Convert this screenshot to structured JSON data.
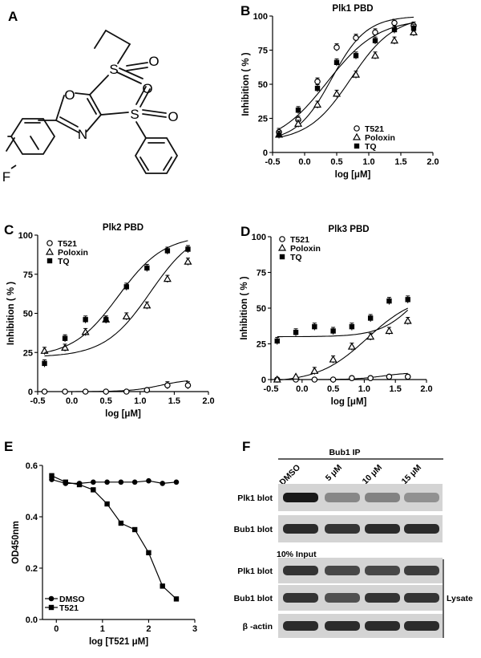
{
  "panels": {
    "A": {
      "letter": "A",
      "atom_O": "O",
      "atom_N": "N",
      "atom_F": "F",
      "atom_S1": "S",
      "atom_S2": "S",
      "atom_O1": "O",
      "atom_O2": "O",
      "atom_O3": "O",
      "atom_O4": "O"
    },
    "F": {
      "letter": "F",
      "ip_label": "Bub1 IP",
      "lanes": [
        "DMSO",
        "5 μM",
        "10 μM",
        "15 μM"
      ],
      "input_label": "10% Input",
      "lysate_label": "Lysate",
      "rows": [
        {
          "label": "Plk1 blot",
          "intensity": [
            0.95,
            0.35,
            0.38,
            0.3
          ]
        },
        {
          "label": "Bub1 blot",
          "intensity": [
            0.85,
            0.8,
            0.85,
            0.85
          ]
        },
        {
          "label": "Plk1 blot",
          "intensity": [
            0.8,
            0.7,
            0.7,
            0.75
          ]
        },
        {
          "label": "Bub1 blot",
          "intensity": [
            0.8,
            0.65,
            0.8,
            0.8
          ]
        },
        {
          "label": "β -actin",
          "intensity": [
            0.85,
            0.85,
            0.85,
            0.85
          ]
        }
      ]
    }
  },
  "chart_data": [
    {
      "id": "B",
      "letter": "B",
      "type": "scatter",
      "title": "Plk1 PBD",
      "xlabel": "log [μM]",
      "ylabel": "Inhibition ( % )",
      "xlim": [
        -0.5,
        2.0
      ],
      "ylim": [
        0,
        100
      ],
      "xticks": [
        "-0.5",
        "0.0",
        "0.5",
        "1.0",
        "1.5",
        "2.0"
      ],
      "yticks": [
        "0",
        "25",
        "50",
        "75",
        "100"
      ],
      "legend_position": "bottom-right",
      "series": [
        {
          "name": "T521",
          "marker": "circle-open",
          "x": [
            -0.4,
            -0.1,
            0.2,
            0.5,
            0.8,
            1.1,
            1.4,
            1.7
          ],
          "y": [
            15,
            24,
            52,
            77,
            84,
            88,
            95,
            93
          ],
          "curve": {
            "bottom": 8,
            "top": 100,
            "ec50_log": 0.42,
            "hill": 1.6
          }
        },
        {
          "name": "Poloxin",
          "marker": "triangle-open",
          "x": [
            -0.4,
            -0.1,
            0.2,
            0.5,
            0.8,
            1.1,
            1.4,
            1.7
          ],
          "y": [
            13,
            21,
            35,
            43,
            57,
            71,
            82,
            88
          ],
          "curve": {
            "bottom": 8,
            "top": 100,
            "ec50_log": 0.72,
            "hill": 1.3
          }
        },
        {
          "name": "TQ",
          "marker": "square-filled",
          "x": [
            -0.4,
            -0.1,
            0.2,
            0.5,
            0.8,
            1.1,
            1.4,
            1.7
          ],
          "y": [
            13,
            31,
            47,
            66,
            71,
            82,
            90,
            91
          ],
          "curve": {
            "bottom": 5,
            "top": 98,
            "ec50_log": 0.35,
            "hill": 1.1
          }
        }
      ]
    },
    {
      "id": "C",
      "letter": "C",
      "type": "scatter",
      "title": "Plk2 PBD",
      "xlabel": "log [μM]",
      "ylabel": "Inhibition ( % )",
      "xlim": [
        -0.5,
        2.0
      ],
      "ylim": [
        0,
        100
      ],
      "xticks": [
        "-0.5",
        "0.0",
        "0.5",
        "1.0",
        "1.5",
        "2.0"
      ],
      "yticks": [
        "0",
        "25",
        "50",
        "75",
        "100"
      ],
      "legend_position": "top-left",
      "series": [
        {
          "name": "T521",
          "marker": "circle-open",
          "x": [
            -0.4,
            -0.1,
            0.2,
            0.5,
            0.8,
            1.1,
            1.4,
            1.7
          ],
          "y": [
            0,
            0,
            0,
            0,
            0,
            1,
            4,
            4
          ],
          "curve": {
            "bottom": 0,
            "top": 8,
            "ec50_log": 1.3,
            "hill": 2.0
          }
        },
        {
          "name": "Poloxin",
          "marker": "triangle-open",
          "x": [
            -0.4,
            -0.1,
            0.2,
            0.5,
            0.8,
            1.1,
            1.4,
            1.7
          ],
          "y": [
            26,
            28,
            38,
            46,
            48,
            55,
            72,
            83
          ],
          "curve": {
            "bottom": 22,
            "top": 105,
            "ec50_log": 1.15,
            "hill": 1.3
          }
        },
        {
          "name": "TQ",
          "marker": "square-filled",
          "x": [
            -0.4,
            -0.1,
            0.2,
            0.5,
            0.8,
            1.1,
            1.4,
            1.7
          ],
          "y": [
            18,
            34,
            46,
            46,
            67,
            79,
            90,
            91
          ],
          "curve": {
            "bottom": 22,
            "top": 100,
            "ec50_log": 0.68,
            "hill": 1.3
          }
        }
      ]
    },
    {
      "id": "D",
      "letter": "D",
      "type": "scatter",
      "title": "Plk3 PBD",
      "xlabel": "log [μM]",
      "ylabel": "Inhibition ( % )",
      "xlim": [
        -0.5,
        2.0
      ],
      "ylim": [
        0,
        100
      ],
      "xticks": [
        "-0.5",
        "0.0",
        "0.5",
        "1.0",
        "1.5",
        "2.0"
      ],
      "yticks": [
        "0",
        "25",
        "50",
        "75",
        "100"
      ],
      "legend_position": "top-left",
      "series": [
        {
          "name": "T521",
          "marker": "circle-open",
          "x": [
            -0.4,
            -0.1,
            0.2,
            0.5,
            0.8,
            1.1,
            1.4,
            1.7
          ],
          "y": [
            0,
            0,
            0,
            0,
            1,
            1,
            2,
            2
          ],
          "curve": {
            "bottom": 0,
            "top": 5,
            "ec50_log": 1.3,
            "hill": 2.0
          }
        },
        {
          "name": "Poloxin",
          "marker": "triangle-open",
          "x": [
            -0.4,
            -0.1,
            0.2,
            0.5,
            0.8,
            1.1,
            1.4,
            1.7
          ],
          "y": [
            0,
            2,
            6,
            14,
            23,
            30,
            34,
            41
          ],
          "curve": {
            "bottom": -2,
            "top": 60,
            "ec50_log": 1.05,
            "hill": 1.1
          }
        },
        {
          "name": "TQ",
          "marker": "square-filled",
          "x": [
            -0.4,
            -0.1,
            0.2,
            0.5,
            0.8,
            1.1,
            1.4,
            1.7
          ],
          "y": [
            27,
            33,
            37,
            34,
            37,
            43,
            55,
            56
          ],
          "curve": {
            "bottom": 30,
            "top": 80,
            "ec50_log": 1.85,
            "hill": 1.5
          }
        }
      ]
    },
    {
      "id": "E",
      "letter": "E",
      "type": "line",
      "title": "",
      "xlabel": "log [T521 μM]",
      "ylabel": "OD450nm",
      "xlim": [
        -0.3,
        3.0
      ],
      "ylim": [
        0.0,
        0.6
      ],
      "xticks": [
        "0",
        "1",
        "2",
        "3"
      ],
      "yticks": [
        "0.0",
        "0.2",
        "0.4",
        "0.6"
      ],
      "legend_position": "bottom-left",
      "series": [
        {
          "name": "DMSO",
          "marker": "circle-filled",
          "x": [
            -0.1,
            0.2,
            0.5,
            0.8,
            1.1,
            1.4,
            1.7,
            2.0,
            2.3,
            2.6
          ],
          "y": [
            0.545,
            0.53,
            0.53,
            0.535,
            0.535,
            0.535,
            0.535,
            0.54,
            0.53,
            0.535
          ]
        },
        {
          "name": "T521",
          "marker": "square-filled",
          "x": [
            -0.1,
            0.2,
            0.5,
            0.8,
            1.1,
            1.4,
            1.7,
            2.0,
            2.3,
            2.6
          ],
          "y": [
            0.56,
            0.535,
            0.525,
            0.505,
            0.45,
            0.375,
            0.35,
            0.26,
            0.13,
            0.08
          ]
        }
      ]
    }
  ]
}
